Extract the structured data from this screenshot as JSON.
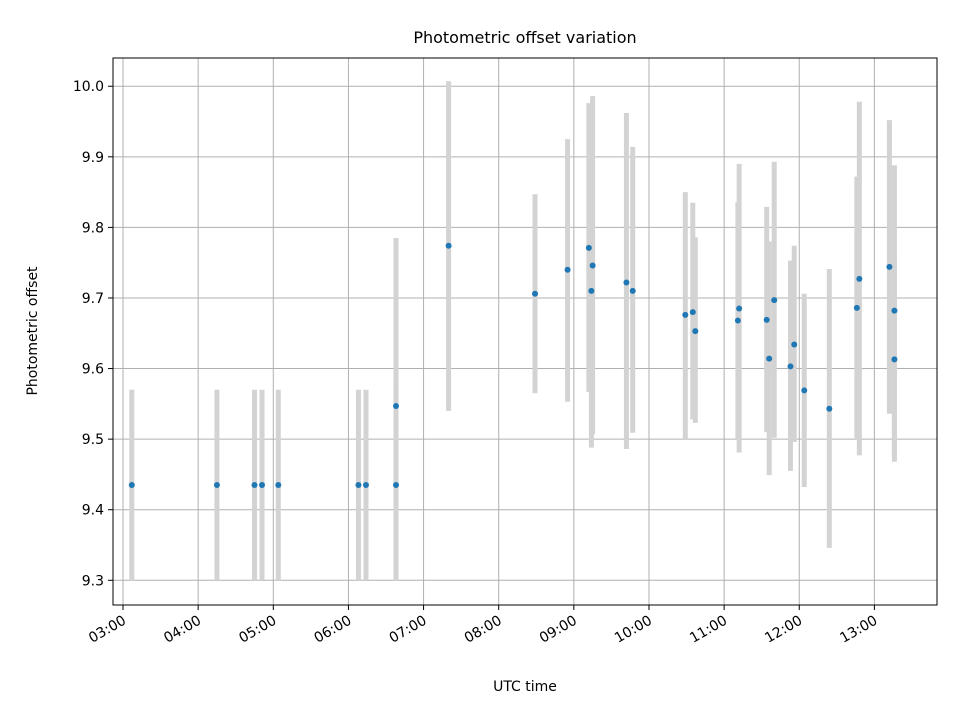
{
  "chart_data": {
    "type": "scatter",
    "title": "Photometric offset variation",
    "xlabel": "UTC time",
    "ylabel": "Photometric offset",
    "x_unit": "UTC hour",
    "x_tick_values": [
      3,
      4,
      5,
      6,
      7,
      8,
      9,
      10,
      11,
      12,
      13
    ],
    "x_tick_labels": [
      "03:00",
      "04:00",
      "05:00",
      "06:00",
      "07:00",
      "08:00",
      "09:00",
      "10:00",
      "11:00",
      "12:00",
      "13:00"
    ],
    "y_tick_values": [
      9.3,
      9.4,
      9.5,
      9.6,
      9.7,
      9.8,
      9.9,
      10.0
    ],
    "y_tick_labels": [
      "9.3",
      "9.4",
      "9.5",
      "9.6",
      "9.7",
      "9.8",
      "9.9",
      "10.0"
    ],
    "xlim": [
      "02:52",
      "13:50"
    ],
    "ylim": [
      9.265,
      10.04
    ],
    "grid": true,
    "marker_color": "#1f77b4",
    "errorbar_color": "#d3d3d3",
    "points": [
      {
        "t": "03:07",
        "y": 9.435,
        "lo": 9.3,
        "hi": 9.57
      },
      {
        "t": "04:15",
        "y": 9.435,
        "lo": 9.3,
        "hi": 9.57
      },
      {
        "t": "04:45",
        "y": 9.435,
        "lo": 9.3,
        "hi": 9.57
      },
      {
        "t": "04:51",
        "y": 9.435,
        "lo": 9.3,
        "hi": 9.57
      },
      {
        "t": "05:04",
        "y": 9.435,
        "lo": 9.3,
        "hi": 9.57
      },
      {
        "t": "06:08",
        "y": 9.435,
        "lo": 9.3,
        "hi": 9.57
      },
      {
        "t": "06:14",
        "y": 9.435,
        "lo": 9.3,
        "hi": 9.57
      },
      {
        "t": "06:38",
        "y": 9.435,
        "lo": 9.3,
        "hi": 9.57
      },
      {
        "t": "06:38",
        "y": 9.547,
        "lo": 9.31,
        "hi": 9.785
      },
      {
        "t": "07:20",
        "y": 9.774,
        "lo": 9.54,
        "hi": 10.007
      },
      {
        "t": "08:29",
        "y": 9.706,
        "lo": 9.565,
        "hi": 9.847
      },
      {
        "t": "08:55",
        "y": 9.74,
        "lo": 9.553,
        "hi": 9.925
      },
      {
        "t": "09:12",
        "y": 9.771,
        "lo": 9.567,
        "hi": 9.976
      },
      {
        "t": "09:14",
        "y": 9.71,
        "lo": 9.488,
        "hi": 9.932
      },
      {
        "t": "09:15",
        "y": 9.746,
        "lo": 9.507,
        "hi": 9.986
      },
      {
        "t": "09:42",
        "y": 9.722,
        "lo": 9.486,
        "hi": 9.962
      },
      {
        "t": "09:47",
        "y": 9.71,
        "lo": 9.509,
        "hi": 9.914
      },
      {
        "t": "10:29",
        "y": 9.676,
        "lo": 9.5,
        "hi": 9.85
      },
      {
        "t": "10:35",
        "y": 9.68,
        "lo": 9.528,
        "hi": 9.835
      },
      {
        "t": "10:37",
        "y": 9.653,
        "lo": 9.523,
        "hi": 9.786
      },
      {
        "t": "11:11",
        "y": 9.668,
        "lo": 9.5,
        "hi": 9.836
      },
      {
        "t": "11:12",
        "y": 9.685,
        "lo": 9.481,
        "hi": 9.89
      },
      {
        "t": "11:34",
        "y": 9.669,
        "lo": 9.51,
        "hi": 9.829
      },
      {
        "t": "11:36",
        "y": 9.614,
        "lo": 9.449,
        "hi": 9.78
      },
      {
        "t": "11:40",
        "y": 9.697,
        "lo": 9.502,
        "hi": 9.893
      },
      {
        "t": "11:53",
        "y": 9.603,
        "lo": 9.455,
        "hi": 9.753
      },
      {
        "t": "11:56",
        "y": 9.634,
        "lo": 9.496,
        "hi": 9.774
      },
      {
        "t": "12:04",
        "y": 9.569,
        "lo": 9.432,
        "hi": 9.706
      },
      {
        "t": "12:24",
        "y": 9.543,
        "lo": 9.346,
        "hi": 9.741
      },
      {
        "t": "12:46",
        "y": 9.686,
        "lo": 9.5,
        "hi": 9.872
      },
      {
        "t": "12:48",
        "y": 9.727,
        "lo": 9.477,
        "hi": 9.978
      },
      {
        "t": "13:12",
        "y": 9.744,
        "lo": 9.536,
        "hi": 9.952
      },
      {
        "t": "13:16",
        "y": 9.682,
        "lo": 9.477,
        "hi": 9.888
      },
      {
        "t": "13:16",
        "y": 9.613,
        "lo": 9.468,
        "hi": 9.758
      }
    ]
  }
}
